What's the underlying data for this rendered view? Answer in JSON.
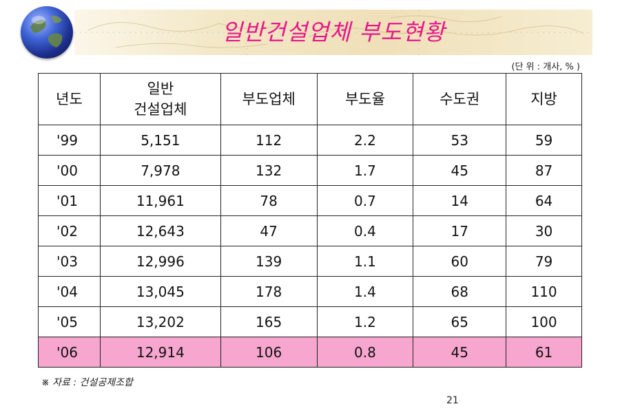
{
  "header": {
    "title": "일반건설업체 부도현황",
    "unit_note": "(단 위 : 개사, % )"
  },
  "table": {
    "headers": [
      {
        "line1": "년도",
        "line2": ""
      },
      {
        "line1": "일반",
        "line2": "건설업체"
      },
      {
        "line1": "부도업체",
        "line2": ""
      },
      {
        "line1": "부도율",
        "line2": ""
      },
      {
        "line1": "수도권",
        "line2": ""
      },
      {
        "line1": "지방",
        "line2": ""
      }
    ],
    "rows": [
      {
        "year": "'99",
        "general": "5,151",
        "bankrupt": "112",
        "rate": "2.2",
        "capital": "53",
        "regional": "59"
      },
      {
        "year": "'00",
        "general": "7,978",
        "bankrupt": "132",
        "rate": "1.7",
        "capital": "45",
        "regional": "87"
      },
      {
        "year": "'01",
        "general": "11,961",
        "bankrupt": "78",
        "rate": "0.7",
        "capital": "14",
        "regional": "64"
      },
      {
        "year": "'02",
        "general": "12,643",
        "bankrupt": "47",
        "rate": "0.4",
        "capital": "17",
        "regional": "30"
      },
      {
        "year": "'03",
        "general": "12,996",
        "bankrupt": "139",
        "rate": "1.1",
        "capital": "60",
        "regional": "79"
      },
      {
        "year": "'04",
        "general": "13,045",
        "bankrupt": "178",
        "rate": "1.4",
        "capital": "68",
        "regional": "110"
      },
      {
        "year": "'05",
        "general": "13,202",
        "bankrupt": "165",
        "rate": "1.2",
        "capital": "65",
        "regional": "100"
      },
      {
        "year": "'06",
        "general": "12,914",
        "bankrupt": "106",
        "rate": "0.8",
        "capital": "45",
        "regional": "61"
      }
    ],
    "highlight_row_color": "#f7a6cf"
  },
  "footer": {
    "source": "※ 자료 : 건설공제조합",
    "page_number": "21"
  },
  "colors": {
    "title": "#e8178b",
    "banner": "#efe0b8"
  },
  "icons": {
    "globe": "globe-icon"
  }
}
